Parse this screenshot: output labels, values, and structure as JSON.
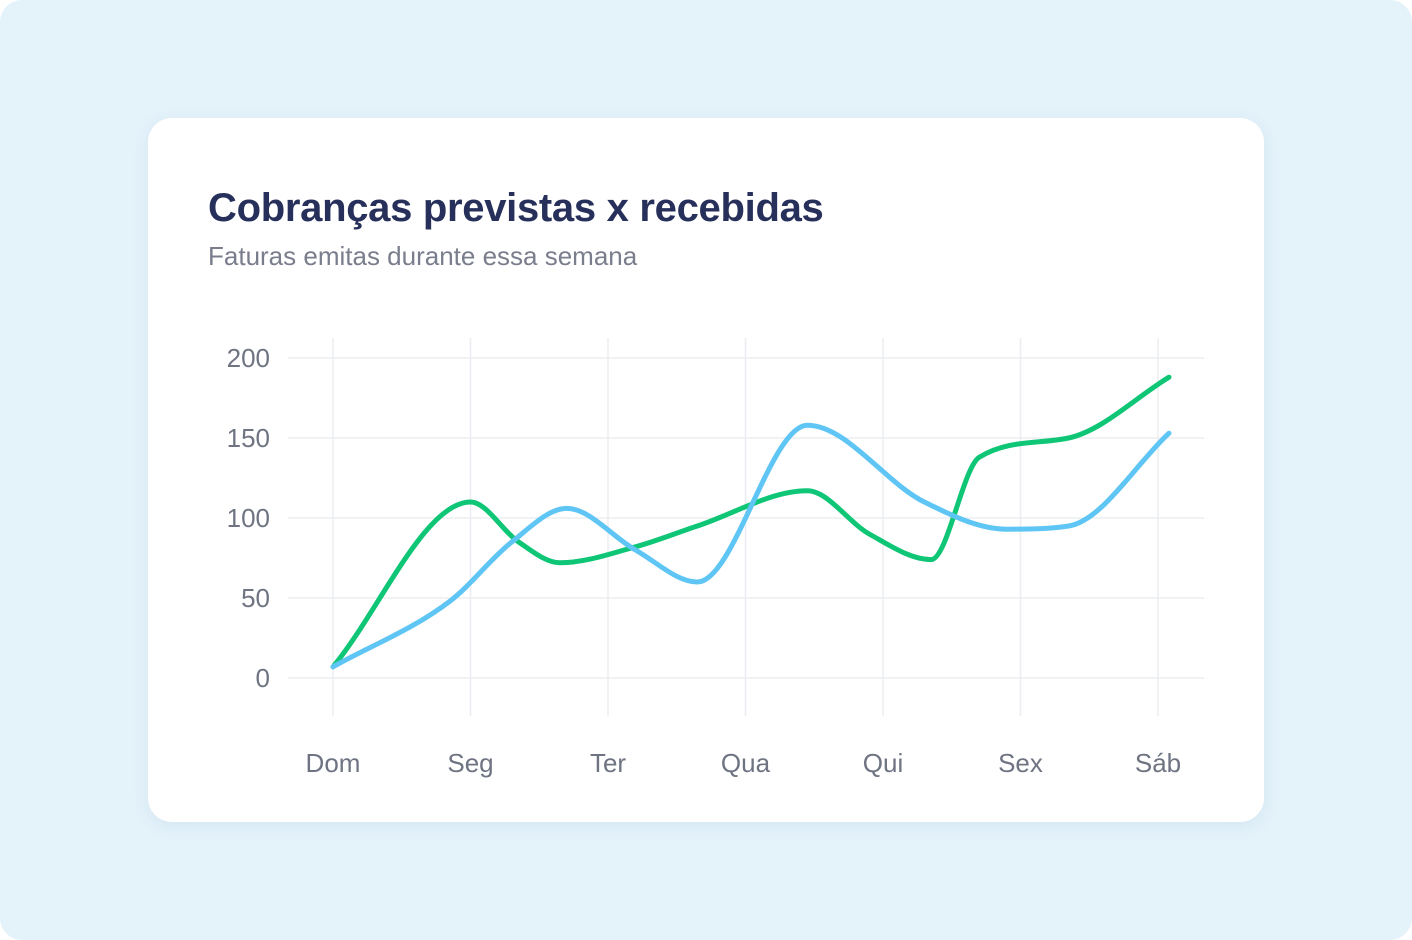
{
  "card": {
    "title": "Cobranças previstas x recebidas",
    "subtitle": "Faturas emitas durante essa semana"
  },
  "colors": {
    "background": "#e4f2fa",
    "card": "#ffffff",
    "title": "#27305a",
    "subtitle": "#7a7e8c",
    "grid": "#ebedf1"
  },
  "chart_data": {
    "type": "line",
    "title": "Cobranças previstas x recebidas",
    "subtitle": "Faturas emitas durante essa semana",
    "xlabel": "",
    "ylabel": "",
    "grid": true,
    "ylim": [
      0,
      200
    ],
    "yticks": [
      0,
      50,
      100,
      150,
      200
    ],
    "categories": [
      "Dom",
      "Seg",
      "Ter",
      "Qua",
      "Qui",
      "Sex",
      "Sáb"
    ],
    "series": [
      {
        "color": "#0fc677",
        "points": [
          [
            0,
            7
          ],
          [
            1,
            110
          ],
          [
            1.35,
            85
          ],
          [
            1.65,
            72
          ],
          [
            2.2,
            82
          ],
          [
            2.65,
            95
          ],
          [
            3.45,
            117
          ],
          [
            3.9,
            90
          ],
          [
            4.35,
            74
          ],
          [
            4.7,
            138
          ],
          [
            5.35,
            150
          ],
          [
            6.08,
            188
          ]
        ]
      },
      {
        "color": "#5ec5f4",
        "points": [
          [
            0,
            7
          ],
          [
            0.85,
            48
          ],
          [
            1.3,
            85
          ],
          [
            1.7,
            106
          ],
          [
            2.2,
            80
          ],
          [
            2.65,
            60
          ],
          [
            3.45,
            158
          ],
          [
            4.3,
            110
          ],
          [
            4.9,
            93
          ],
          [
            5.35,
            95
          ],
          [
            6.08,
            153
          ]
        ]
      }
    ]
  }
}
